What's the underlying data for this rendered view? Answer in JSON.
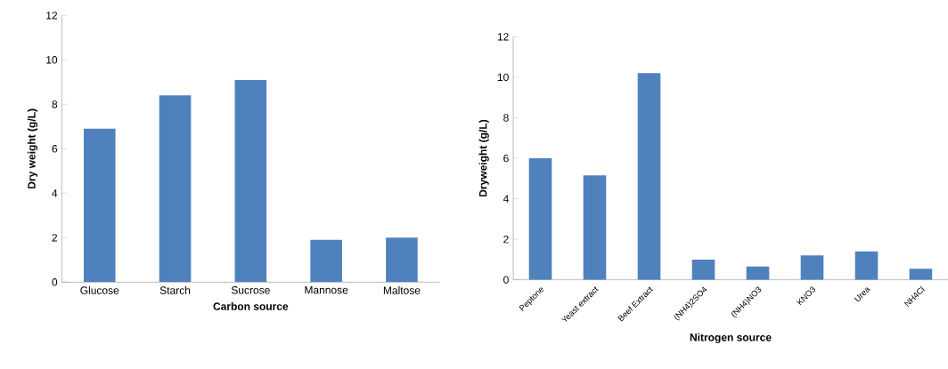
{
  "chart_data": [
    {
      "type": "bar",
      "xlabel": "Carbon source",
      "ylabel": "Dry weight (g/L)",
      "categories": [
        "Glucose",
        "Starch",
        "Sucrose",
        "Mannose",
        "Maltose"
      ],
      "values": [
        6.9,
        8.4,
        9.1,
        1.9,
        2.0
      ],
      "color": "#4f81bd",
      "ylim": [
        0,
        12
      ],
      "yticks": [
        0,
        2,
        4,
        6,
        8,
        10,
        12
      ]
    },
    {
      "type": "bar",
      "xlabel": "Nitrogen source",
      "ylabel": "Dryweight (g/L)",
      "categories": [
        "Peptone",
        "Yeast extract",
        "Beef Extract",
        "(NH4)2SO4",
        "(NH4)NO3",
        "KNO3",
        "Urea",
        "NH4Cl"
      ],
      "values": [
        6.0,
        5.15,
        10.2,
        1.0,
        0.65,
        1.2,
        1.4,
        0.55
      ],
      "color": "#4f81bd",
      "ylim": [
        0,
        12
      ],
      "yticks": [
        0,
        2,
        4,
        6,
        8,
        10,
        12
      ]
    }
  ]
}
